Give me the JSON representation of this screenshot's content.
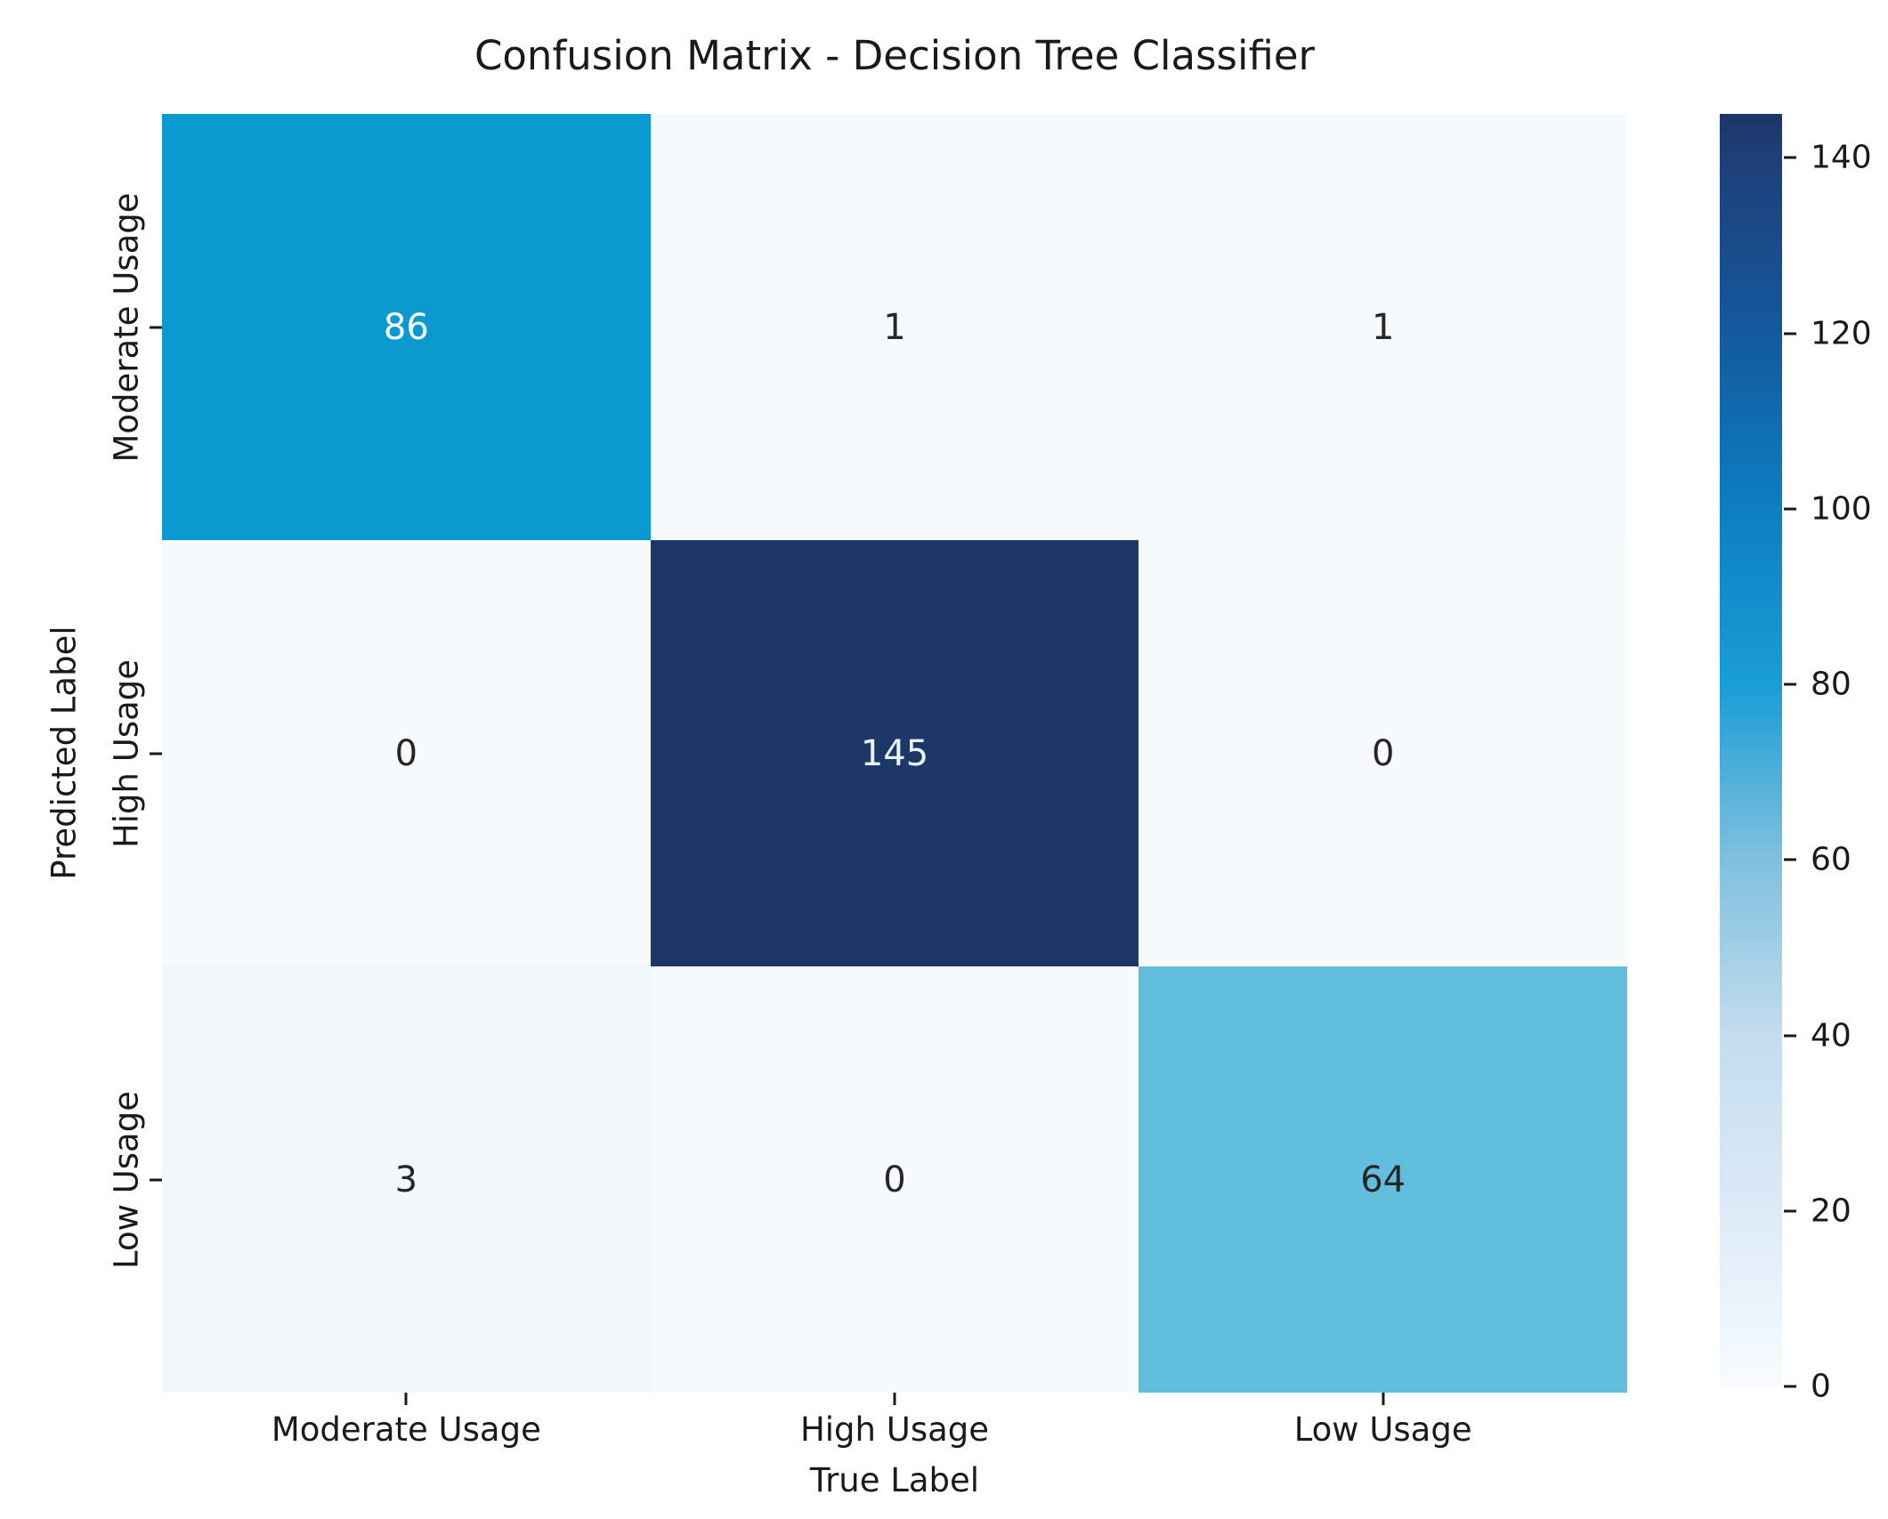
{
  "chart_data": {
    "type": "heatmap",
    "title": "Confusion Matrix - Decision Tree Classifier",
    "xlabel": "True Label",
    "ylabel": "Predicted Label",
    "x_categories": [
      "Moderate Usage",
      "High Usage",
      "Low Usage"
    ],
    "y_categories": [
      "Moderate Usage",
      "High Usage",
      "Low Usage"
    ],
    "matrix": [
      [
        86,
        1,
        1
      ],
      [
        0,
        145,
        0
      ],
      [
        3,
        0,
        64
      ]
    ],
    "vmin": 0,
    "vmax": 145,
    "colormap": "Blues",
    "grid": false,
    "cell_colors": [
      [
        "#0a9ad0",
        "#f5f9fc",
        "#f5f9fc"
      ],
      [
        "#f7fafd",
        "#1d3868",
        "#f7fafd"
      ],
      [
        "#f2f7fb",
        "#f7fafd",
        "#61bedd"
      ]
    ],
    "cell_text_colors": [
      [
        "#ffffff",
        "#262626",
        "#262626"
      ],
      [
        "#262626",
        "#eaf2fa",
        "#262626"
      ],
      [
        "#262626",
        "#262626",
        "#262626"
      ]
    ],
    "colorbar": {
      "position": "right",
      "ticks": [
        0,
        20,
        40,
        60,
        80,
        100,
        120,
        140
      ],
      "gradient_stops": [
        {
          "value": 145,
          "color": "#1d3568"
        },
        {
          "value": 140,
          "color": "#1e3f78"
        },
        {
          "value": 120,
          "color": "#14599e"
        },
        {
          "value": 100,
          "color": "#0c7ec1"
        },
        {
          "value": 80,
          "color": "#1a9dd5"
        },
        {
          "value": 60,
          "color": "#7fc0de"
        },
        {
          "value": 40,
          "color": "#c3dcee"
        },
        {
          "value": 20,
          "color": "#ddeaf7"
        },
        {
          "value": 0,
          "color": "#f7fbff"
        }
      ]
    }
  }
}
